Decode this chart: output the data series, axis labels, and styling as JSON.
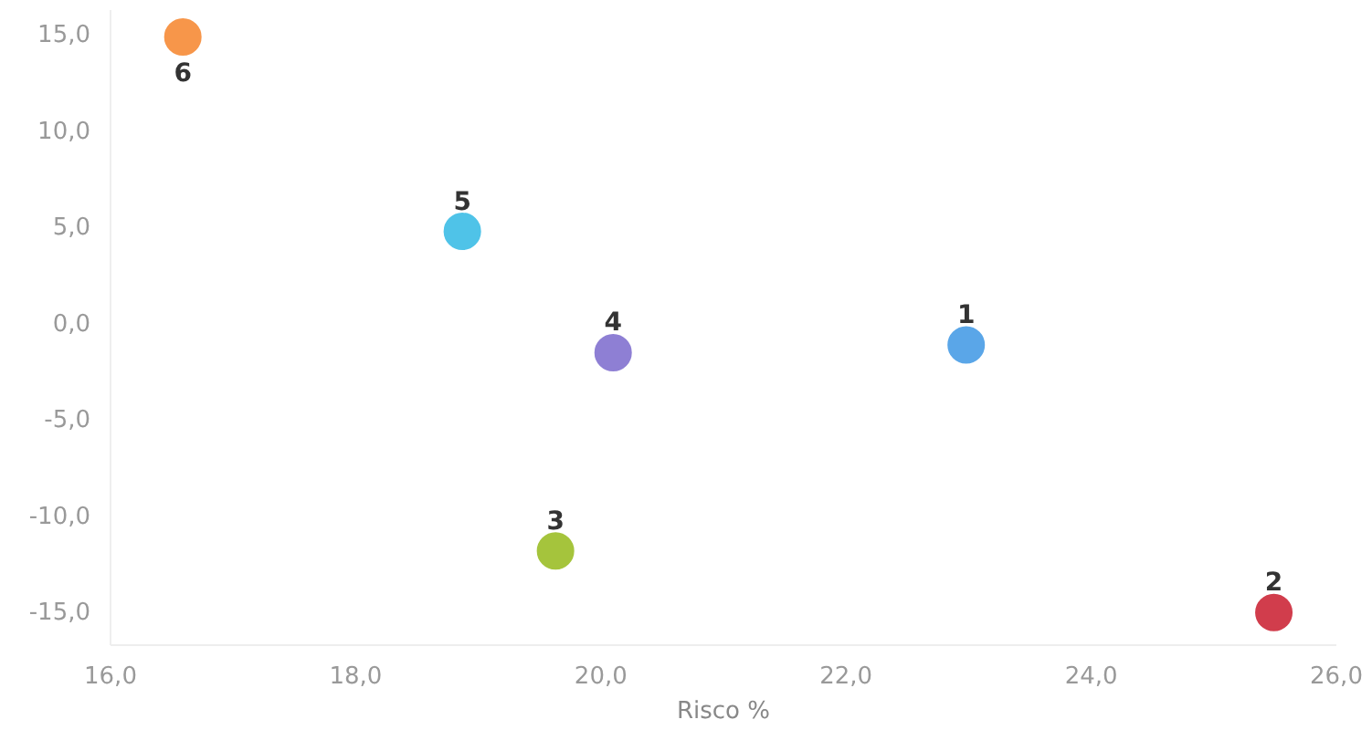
{
  "chart_data": {
    "type": "scatter",
    "xlabel": "Risco %",
    "x": [
      22.98,
      25.49,
      19.63,
      20.1,
      18.87,
      16.59
    ],
    "values": [
      -1.2,
      -15.1,
      -11.9,
      -1.6,
      4.7,
      14.8
    ],
    "colors": [
      "#5aa6e8",
      "#d13d4c",
      "#a5c43c",
      "#8e7fd4",
      "#4fc3e8",
      "#f7964a"
    ],
    "annotations": [
      {
        "text": "1",
        "x": 22.98,
        "y": -1.2
      },
      {
        "text": "2",
        "x": 25.49,
        "y": -15.1
      },
      {
        "text": "3",
        "x": 19.63,
        "y": -11.9
      },
      {
        "text": "4",
        "x": 20.1,
        "y": -1.6
      },
      {
        "text": "5",
        "x": 18.87,
        "y": 4.7
      },
      {
        "text": "6",
        "x": 16.59,
        "y": 14.8
      }
    ],
    "xlim": [
      16,
      26
    ],
    "ylim": [
      -16.8,
      16.2
    ],
    "xticks": [
      {
        "value": 16,
        "label": "16,0"
      },
      {
        "value": 18,
        "label": "18,0"
      },
      {
        "value": 20,
        "label": "20,0"
      },
      {
        "value": 22,
        "label": "22,0"
      },
      {
        "value": 24,
        "label": "24,0"
      },
      {
        "value": 26,
        "label": "26,0"
      }
    ],
    "yticks": [
      {
        "value": -15,
        "label": "-15,0"
      },
      {
        "value": -10,
        "label": "-10,0"
      },
      {
        "value": -5,
        "label": "-5,0"
      },
      {
        "value": 0,
        "label": "0,0"
      },
      {
        "value": 5,
        "label": "5,0"
      },
      {
        "value": 10,
        "label": "10,0"
      },
      {
        "value": 15,
        "label": "15,0"
      }
    ],
    "marker": "circle",
    "grid": false
  }
}
